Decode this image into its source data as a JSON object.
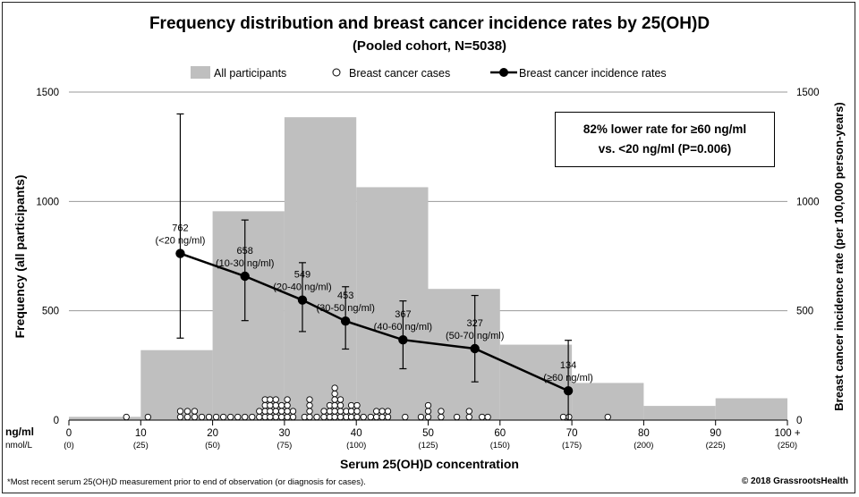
{
  "chart_data": {
    "type": "bar",
    "title": "Frequency distribution and breast cancer incidence rates by 25(OH)D",
    "subtitle": "(Pooled cohort, N=5038)",
    "xlabel": "Serum 25(OH)D concentration",
    "ylabel_left": "Frequency (all participants)",
    "ylabel_right": "Breast cancer incidence rate (per 100,000 person-years)",
    "x_unit_1": "ng/ml",
    "x_unit_2": "nmol/L",
    "x_ticks": [
      {
        "ng": "0",
        "nmol": "(0)"
      },
      {
        "ng": "10",
        "nmol": "(25)"
      },
      {
        "ng": "20",
        "nmol": "(50)"
      },
      {
        "ng": "30",
        "nmol": "(75)"
      },
      {
        "ng": "40",
        "nmol": "(100)"
      },
      {
        "ng": "50",
        "nmol": "(125)"
      },
      {
        "ng": "60",
        "nmol": "(150)"
      },
      {
        "ng": "70",
        "nmol": "(175)"
      },
      {
        "ng": "80",
        "nmol": "(200)"
      },
      {
        "ng": "90",
        "nmol": "(225)"
      },
      {
        "ng": "100 +",
        "nmol": "(250)"
      }
    ],
    "x_tick_values": [
      0,
      10,
      20,
      30,
      40,
      50,
      60,
      70,
      80,
      90,
      100
    ],
    "xlim": [
      0,
      100
    ],
    "ylim_left": [
      0,
      1500
    ],
    "ylim_right": [
      0,
      1500
    ],
    "y_ticks_left": [
      "0",
      "500",
      "1000",
      "1500"
    ],
    "y_ticks_right": [
      "0",
      "500",
      "1000",
      "1500"
    ],
    "legend": {
      "placement": "top",
      "bar": "All participants",
      "cases": "Breast cancer cases",
      "line": "Breast cancer incidence rates"
    },
    "histogram": {
      "name": "All participants",
      "color": "#bfbfbf",
      "bins": [
        {
          "x0": 0,
          "x1": 10,
          "value": 15
        },
        {
          "x0": 10,
          "x1": 20,
          "value": 320
        },
        {
          "x0": 20,
          "x1": 30,
          "value": 955
        },
        {
          "x0": 30,
          "x1": 40,
          "value": 1385
        },
        {
          "x0": 40,
          "x1": 50,
          "value": 1065
        },
        {
          "x0": 50,
          "x1": 60,
          "value": 600
        },
        {
          "x0": 60,
          "x1": 70,
          "value": 345
        },
        {
          "x0": 70,
          "x1": 80,
          "value": 170
        },
        {
          "x0": 80,
          "x1": 90,
          "value": 65
        },
        {
          "x0": 90,
          "x1": 100,
          "value": 100
        }
      ]
    },
    "incidence_rates": {
      "name": "Breast cancer incidence rates",
      "color": "#000000",
      "points": [
        {
          "x": 15.5,
          "y": 762,
          "err_low": 375,
          "err_high": 1400,
          "label": "762",
          "range": "(<20 ng/ml)"
        },
        {
          "x": 24.5,
          "y": 658,
          "err_low": 455,
          "err_high": 915,
          "label": "658",
          "range": "(10-30 ng/ml)"
        },
        {
          "x": 32.5,
          "y": 549,
          "err_low": 405,
          "err_high": 720,
          "label": "549",
          "range": "(20-40 ng/ml)"
        },
        {
          "x": 38.5,
          "y": 453,
          "err_low": 325,
          "err_high": 610,
          "label": "453",
          "range": "(30-50 ng/ml)"
        },
        {
          "x": 46.5,
          "y": 367,
          "err_low": 235,
          "err_high": 545,
          "label": "367",
          "range": "(40-60 ng/ml)"
        },
        {
          "x": 56.5,
          "y": 327,
          "err_low": 175,
          "err_high": 570,
          "label": "327",
          "range": "(50-70 ng/ml)"
        },
        {
          "x": 69.5,
          "y": 134,
          "err_low": 0,
          "err_high": 365,
          "label": "134",
          "range": "(≥60 ng/ml)"
        }
      ]
    },
    "cases": {
      "name": "Breast cancer cases",
      "columns": [
        {
          "x": 8,
          "n": 1
        },
        {
          "x": 11,
          "n": 1
        },
        {
          "x": 15.5,
          "n": 2
        },
        {
          "x": 16.5,
          "n": 2
        },
        {
          "x": 17.5,
          "n": 2
        },
        {
          "x": 18.5,
          "n": 1
        },
        {
          "x": 19.5,
          "n": 1
        },
        {
          "x": 20.5,
          "n": 1
        },
        {
          "x": 21.5,
          "n": 1
        },
        {
          "x": 22.5,
          "n": 1
        },
        {
          "x": 23.5,
          "n": 1
        },
        {
          "x": 24.5,
          "n": 1
        },
        {
          "x": 25.5,
          "n": 1
        },
        {
          "x": 26.5,
          "n": 2
        },
        {
          "x": 27.3,
          "n": 4
        },
        {
          "x": 28,
          "n": 4
        },
        {
          "x": 28.8,
          "n": 4
        },
        {
          "x": 29.6,
          "n": 3
        },
        {
          "x": 30.4,
          "n": 4
        },
        {
          "x": 31.2,
          "n": 2
        },
        {
          "x": 32.8,
          "n": 1
        },
        {
          "x": 33.5,
          "n": 4
        },
        {
          "x": 34.5,
          "n": 1
        },
        {
          "x": 35.5,
          "n": 2
        },
        {
          "x": 36.3,
          "n": 3
        },
        {
          "x": 37,
          "n": 6
        },
        {
          "x": 37.8,
          "n": 4
        },
        {
          "x": 38.6,
          "n": 2
        },
        {
          "x": 39.3,
          "n": 3
        },
        {
          "x": 40.1,
          "n": 3
        },
        {
          "x": 41,
          "n": 1
        },
        {
          "x": 42,
          "n": 1
        },
        {
          "x": 42.8,
          "n": 2
        },
        {
          "x": 43.6,
          "n": 2
        },
        {
          "x": 44.4,
          "n": 2
        },
        {
          "x": 46.8,
          "n": 1
        },
        {
          "x": 49,
          "n": 1
        },
        {
          "x": 50,
          "n": 3
        },
        {
          "x": 51.8,
          "n": 2
        },
        {
          "x": 54,
          "n": 1
        },
        {
          "x": 55.7,
          "n": 2
        },
        {
          "x": 57.5,
          "n": 1
        },
        {
          "x": 58.3,
          "n": 1
        },
        {
          "x": 68.8,
          "n": 1
        },
        {
          "x": 69.6,
          "n": 1
        },
        {
          "x": 75,
          "n": 1
        }
      ]
    },
    "callout_line1": "82% lower rate for ≥60 ng/ml",
    "callout_line2": "vs. <20 ng/ml (P=0.006)",
    "grid": true
  },
  "footnote": "*Most recent serum 25(OH)D measurement prior to end of observation (or diagnosis for cases).",
  "copyright": "© 2018 GrassrootsHealth"
}
